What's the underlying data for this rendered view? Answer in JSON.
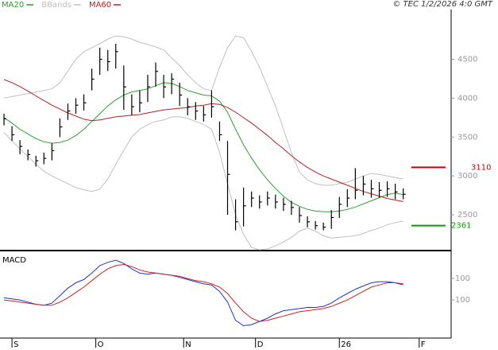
{
  "chart_data": [
    {
      "type": "ohlc",
      "copyright": "© TEC 1/2/2026 4:0 GMT",
      "x": [
        1,
        3,
        5,
        7,
        9,
        11,
        13,
        15,
        17,
        19,
        21,
        23,
        25,
        27,
        29,
        31,
        33,
        35,
        37,
        39,
        41,
        43,
        45,
        47,
        49,
        51,
        53,
        55,
        57,
        59,
        61,
        63,
        65,
        67,
        69,
        71,
        73,
        75,
        77,
        79,
        81,
        83,
        85,
        87,
        89,
        91,
        93,
        95,
        97,
        99,
        101
      ],
      "high": [
        3800,
        3640,
        3460,
        3340,
        3260,
        3300,
        3420,
        3740,
        3930,
        4000,
        4050,
        4380,
        4650,
        4620,
        4700,
        4420,
        4050,
        4100,
        4300,
        4460,
        4300,
        4320,
        4200,
        4000,
        3950,
        3900,
        4100,
        3700,
        3450,
        2700,
        2850,
        2800,
        2750,
        2800,
        2760,
        2720,
        2680,
        2600,
        2480,
        2420,
        2400,
        2560,
        2730,
        2830,
        3100,
        3000,
        2950,
        2920,
        2930,
        2900,
        2840
      ],
      "low": [
        3650,
        3450,
        3280,
        3200,
        3120,
        3150,
        3200,
        3500,
        3720,
        3800,
        3840,
        4100,
        4300,
        4350,
        4380,
        3850,
        3780,
        3820,
        3950,
        4150,
        4000,
        4050,
        3900,
        3780,
        3720,
        3700,
        3750,
        3450,
        2500,
        2300,
        2350,
        2600,
        2580,
        2620,
        2580,
        2550,
        2500,
        2400,
        2340,
        2310,
        2300,
        2320,
        2460,
        2600,
        2700,
        2750,
        2720,
        2720,
        2730,
        2700,
        2700
      ],
      "close": [
        3735,
        3530,
        3380,
        3275,
        3195,
        3225,
        3325,
        3630,
        3835,
        3910,
        3940,
        4245,
        4500,
        4470,
        4600,
        4145,
        3890,
        3940,
        4145,
        4345,
        4145,
        4245,
        4040,
        3890,
        3835,
        3785,
        3890,
        3530,
        3020,
        2410,
        2615,
        2715,
        2665,
        2715,
        2665,
        2635,
        2595,
        2490,
        2410,
        2360,
        2340,
        2465,
        2635,
        2715,
        2815,
        2895,
        2835,
        2815,
        2835,
        2795,
        2765
      ],
      "color": "#000000",
      "series": [
        {
          "name": "MA20",
          "color": "#2ca02c",
          "values": [
            3750,
            3680,
            3600,
            3540,
            3480,
            3440,
            3420,
            3430,
            3460,
            3520,
            3600,
            3700,
            3800,
            3900,
            3980,
            4040,
            4080,
            4100,
            4120,
            4160,
            4200,
            4190,
            4150,
            4100,
            4070,
            4040,
            4030,
            3960,
            3820,
            3600,
            3400,
            3230,
            3080,
            2950,
            2840,
            2740,
            2660,
            2610,
            2570,
            2550,
            2540,
            2540,
            2550,
            2570,
            2600,
            2640,
            2680,
            2720,
            2760,
            2780,
            2760
          ]
        },
        {
          "name": "BBands",
          "color": "#c0c0c0",
          "upper": [
            4000,
            4020,
            4040,
            4060,
            4080,
            4100,
            4120,
            4200,
            4350,
            4500,
            4600,
            4650,
            4700,
            4760,
            4800,
            4790,
            4760,
            4720,
            4690,
            4660,
            4620,
            4520,
            4420,
            4300,
            4200,
            4120,
            4100,
            4400,
            4650,
            4800,
            4780,
            4600,
            4400,
            4150,
            3900,
            3600,
            3300,
            3050,
            2950,
            2900,
            2880,
            2880,
            2900,
            2920,
            2960,
            3000,
            3030,
            3020,
            3000,
            2980,
            2960
          ],
          "lower": [
            3560,
            3450,
            3350,
            3250,
            3150,
            3060,
            3000,
            2950,
            2900,
            2850,
            2820,
            2800,
            2830,
            2960,
            3150,
            3330,
            3500,
            3600,
            3660,
            3700,
            3720,
            3760,
            3760,
            3740,
            3700,
            3660,
            3600,
            3300,
            2900,
            2500,
            2250,
            2080,
            2050,
            2060,
            2100,
            2150,
            2210,
            2290,
            2330,
            2290,
            2230,
            2200,
            2210,
            2220,
            2230,
            2260,
            2300,
            2330,
            2370,
            2400,
            2420
          ]
        },
        {
          "name": "MA60",
          "color": "#b22222",
          "values": [
            4240,
            4200,
            4150,
            4090,
            4030,
            3970,
            3910,
            3860,
            3810,
            3770,
            3730,
            3710,
            3720,
            3740,
            3760,
            3770,
            3780,
            3790,
            3810,
            3830,
            3850,
            3860,
            3870,
            3880,
            3900,
            3910,
            3930,
            3920,
            3880,
            3820,
            3750,
            3680,
            3600,
            3520,
            3430,
            3350,
            3260,
            3180,
            3110,
            3050,
            3000,
            2960,
            2920,
            2880,
            2840,
            2800,
            2770,
            2740,
            2710,
            2690,
            2670
          ]
        }
      ],
      "levels": [
        {
          "value": 3110,
          "color": "#cc0000"
        },
        {
          "value": 2361,
          "color": "#119911"
        }
      ],
      "xlim": [
        0,
        113
      ],
      "ylim": [
        2040,
        5140
      ],
      "yticks": [
        2500,
        3000,
        3500,
        4000,
        4500
      ]
    },
    {
      "type": "line",
      "title": "MACD",
      "x": [
        1,
        3,
        5,
        7,
        9,
        11,
        13,
        15,
        17,
        19,
        21,
        23,
        25,
        27,
        29,
        31,
        33,
        35,
        37,
        39,
        41,
        43,
        45,
        47,
        49,
        51,
        53,
        55,
        57,
        59,
        61,
        63,
        65,
        67,
        69,
        71,
        73,
        75,
        77,
        79,
        81,
        83,
        85,
        87,
        89,
        91,
        93,
        95,
        97,
        99,
        101
      ],
      "series": [
        {
          "color": "#2233cc",
          "values": [
            -80,
            -90,
            -100,
            -120,
            -140,
            -150,
            -130,
            -60,
            10,
            60,
            90,
            150,
            220,
            250,
            270,
            240,
            190,
            150,
            140,
            150,
            140,
            130,
            110,
            90,
            70,
            50,
            40,
            -20,
            -120,
            -290,
            -340,
            -330,
            -300,
            -270,
            -230,
            -200,
            -190,
            -180,
            -170,
            -170,
            -160,
            -130,
            -80,
            -40,
            0,
            30,
            60,
            70,
            70,
            60,
            40
          ]
        },
        {
          "color": "#cc2222",
          "values": [
            -100,
            -110,
            -120,
            -130,
            -140,
            -150,
            -150,
            -120,
            -80,
            -30,
            20,
            80,
            140,
            190,
            220,
            230,
            210,
            180,
            160,
            150,
            140,
            130,
            120,
            100,
            80,
            70,
            50,
            20,
            -40,
            -130,
            -210,
            -270,
            -300,
            -290,
            -270,
            -250,
            -230,
            -210,
            -200,
            -190,
            -180,
            -160,
            -130,
            -100,
            -60,
            -20,
            20,
            40,
            60,
            60,
            50
          ]
        }
      ],
      "xlim": [
        0,
        113
      ],
      "xticks": [
        {
          "value": 3,
          "label": "S"
        },
        {
          "value": 24,
          "label": "O"
        },
        {
          "value": 46,
          "label": "N"
        },
        {
          "value": 64,
          "label": "D"
        },
        {
          "value": 85,
          "label": "26"
        },
        {
          "value": 105,
          "label": "F"
        }
      ],
      "ylim": [
        -455,
        345
      ],
      "yticks": [
        100,
        -100
      ]
    }
  ]
}
